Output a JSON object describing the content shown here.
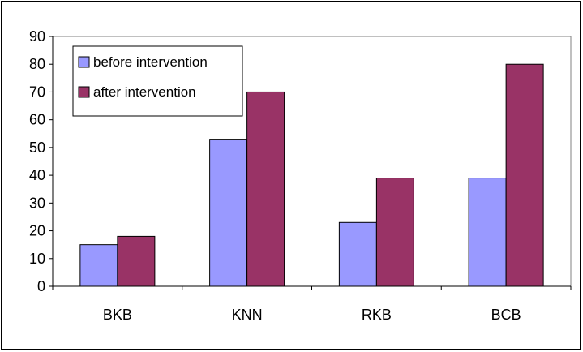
{
  "chart_data": {
    "type": "bar",
    "categories": [
      "BKB",
      "KNN",
      "RKB",
      "BCB"
    ],
    "series": [
      {
        "name": "before intervention",
        "values": [
          15,
          53,
          23,
          39
        ],
        "color": "#9999ff"
      },
      {
        "name": "after intervention",
        "values": [
          18,
          70,
          39,
          80
        ],
        "color": "#993366"
      }
    ],
    "ylim": [
      0,
      90
    ],
    "yticks": [
      0,
      10,
      20,
      30,
      40,
      50,
      60,
      70,
      80,
      90
    ],
    "grid": false,
    "legend_position": "top-left",
    "plot_background": "#ffffff",
    "border_color": "#000000"
  }
}
